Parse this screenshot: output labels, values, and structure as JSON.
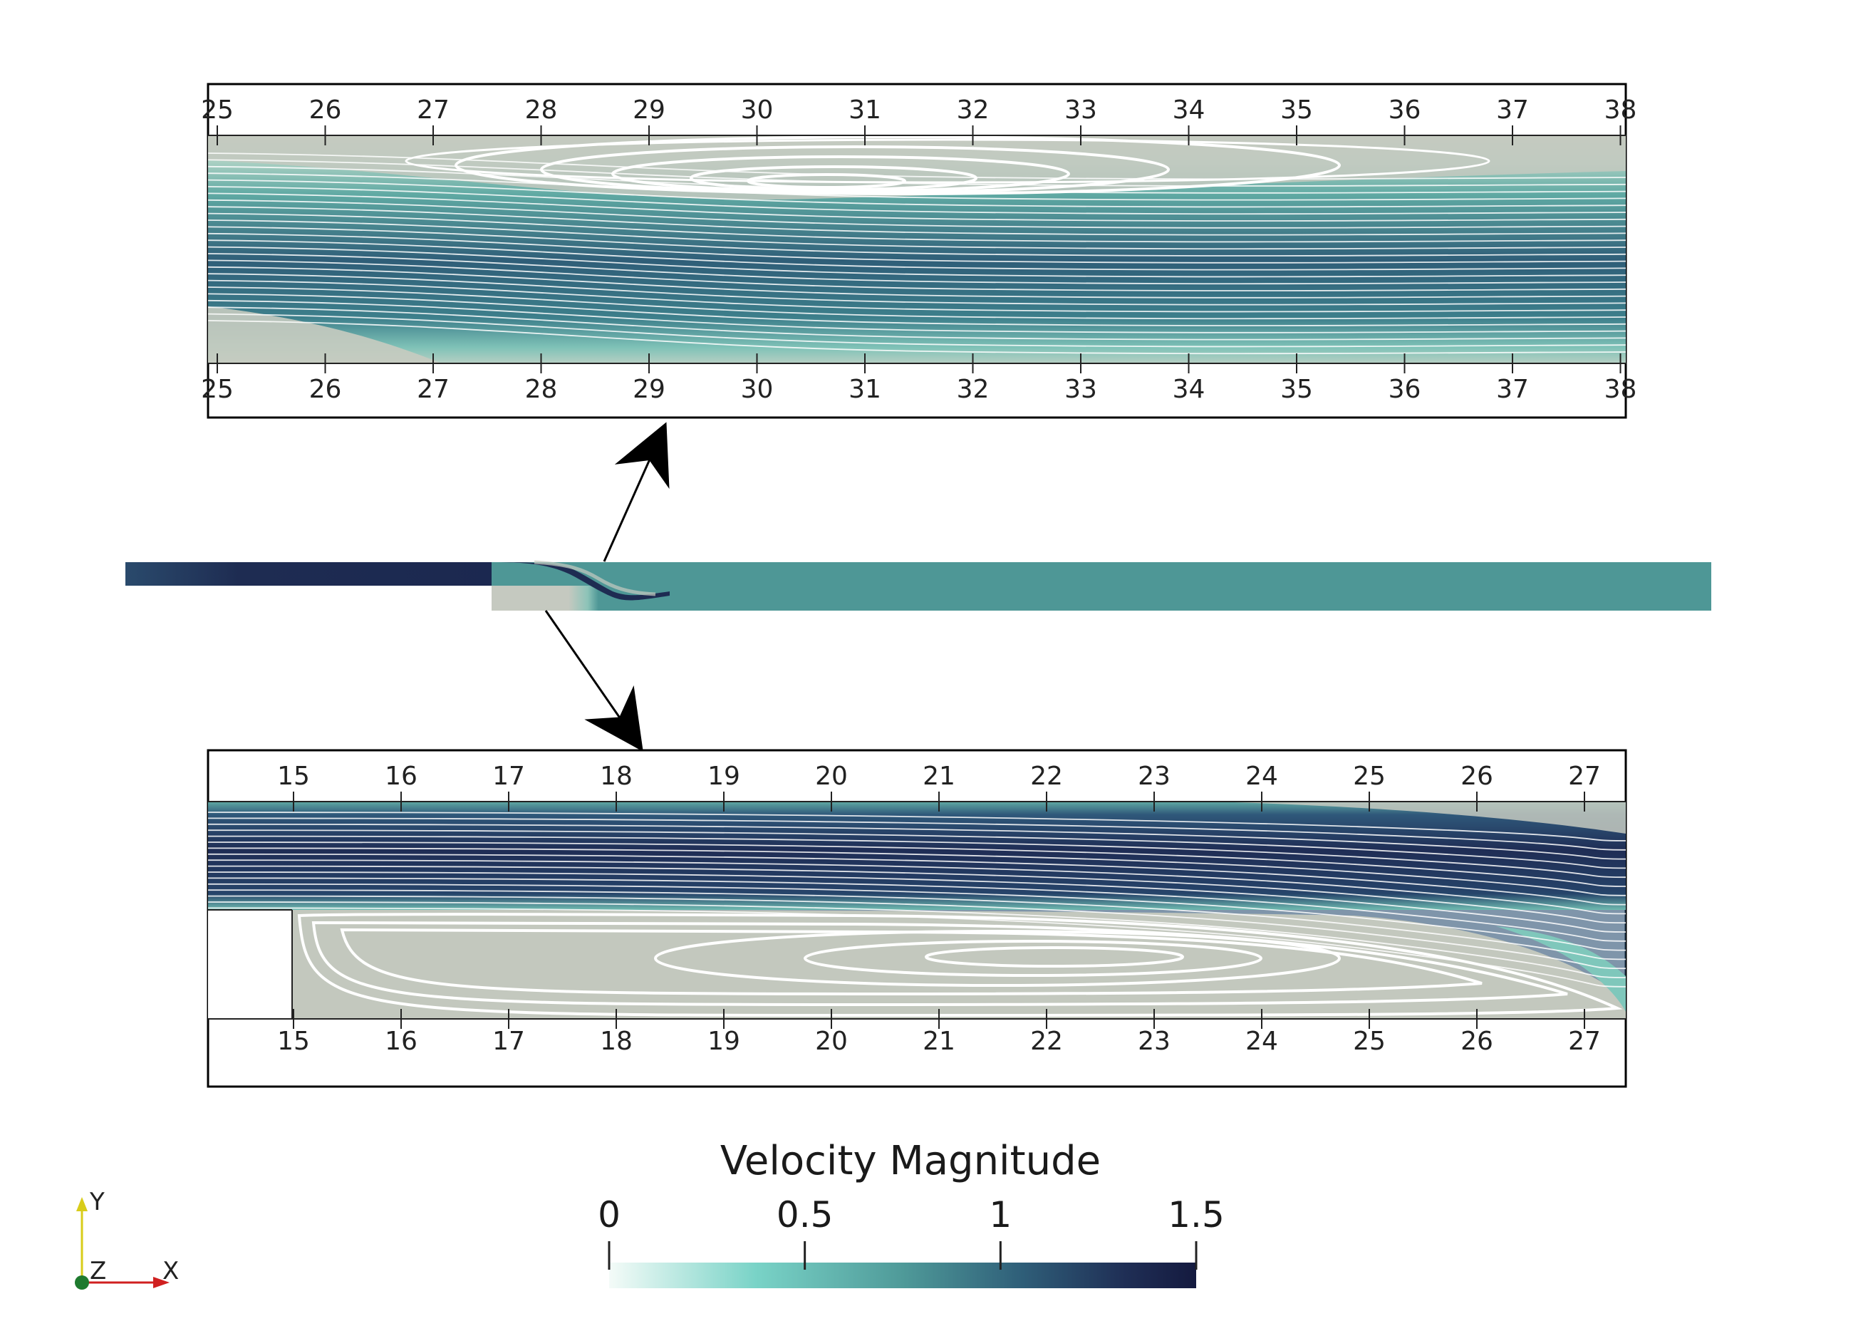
{
  "figure": {
    "top_panel": {
      "ticks": [
        "25",
        "26",
        "27",
        "28",
        "29",
        "30",
        "31",
        "32",
        "33",
        "34",
        "35",
        "36",
        "37",
        "38"
      ]
    },
    "bottom_panel": {
      "ticks": [
        "15",
        "16",
        "17",
        "18",
        "19",
        "20",
        "21",
        "22",
        "23",
        "24",
        "25",
        "26",
        "27"
      ]
    },
    "colorbar": {
      "title": "Velocity Magnitude",
      "ticks": [
        "0",
        "0.5",
        "1",
        "1.5"
      ],
      "range": [
        0,
        1.5
      ],
      "colors": [
        "#f4fbf8",
        "#79d3c7",
        "#4f9a99",
        "#2f5f79",
        "#1f2e55",
        "#141a3f"
      ]
    },
    "axes_triad": {
      "y_label": "Y",
      "z_label": "Z",
      "x_label": "X",
      "y_color": "#d8cc1a",
      "x_color": "#d02020",
      "z_color": "#1e7a2e"
    },
    "field_colors": {
      "recirculation": "#c2c7bd",
      "shear": "#7fc7bb",
      "core": "#4e9796",
      "jet": "#203054"
    }
  }
}
